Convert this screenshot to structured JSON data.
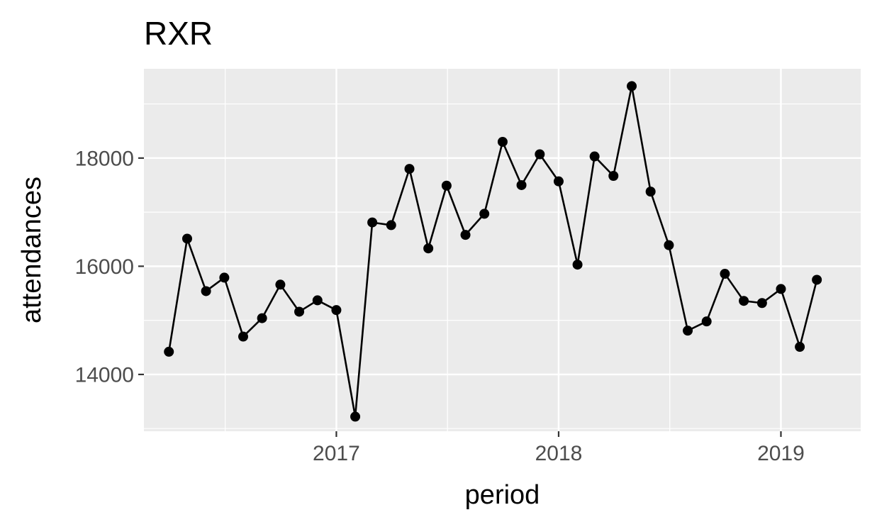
{
  "chart_data": {
    "type": "line",
    "title": "RXR",
    "xlabel": "period",
    "ylabel": "attendances",
    "x_axis": {
      "type": "date",
      "range": [
        "2016-02-20",
        "2019-05-12"
      ],
      "ticks": [
        "2017-01-01",
        "2018-01-01",
        "2019-01-01"
      ],
      "tick_labels": [
        "2017",
        "2018",
        "2019"
      ]
    },
    "y_axis": {
      "range": [
        12950,
        19650
      ],
      "ticks": [
        14000,
        16000,
        18000
      ],
      "tick_labels": [
        "14000",
        "16000",
        "18000"
      ]
    },
    "grid": true,
    "legend": "none",
    "colors": {
      "panel": "#EBEBEB",
      "grid": "#FFFFFF",
      "line": "#000000",
      "point": "#000000"
    },
    "series": [
      {
        "x": [
          "2016-04-01",
          "2016-05-01",
          "2016-06-01",
          "2016-07-01",
          "2016-08-01",
          "2016-09-01",
          "2016-10-01",
          "2016-11-01",
          "2016-12-01",
          "2017-01-01",
          "2017-02-01",
          "2017-03-01",
          "2017-04-01",
          "2017-05-01",
          "2017-06-01",
          "2017-07-01",
          "2017-08-01",
          "2017-09-01",
          "2017-10-01",
          "2017-11-01",
          "2017-12-01",
          "2018-01-01",
          "2018-02-01",
          "2018-03-01",
          "2018-04-01",
          "2018-05-01",
          "2018-06-01",
          "2018-07-01",
          "2018-08-01",
          "2018-09-01",
          "2018-10-01",
          "2018-11-01",
          "2018-12-01",
          "2019-01-01",
          "2019-02-01",
          "2019-03-01"
        ],
        "y": [
          14420,
          16510,
          15540,
          15790,
          14700,
          15040,
          15660,
          15160,
          15370,
          15190,
          13220,
          16810,
          16760,
          17800,
          16330,
          17490,
          16580,
          16970,
          18300,
          17500,
          18070,
          17570,
          16030,
          18030,
          17670,
          19330,
          17380,
          16390,
          14810,
          14980,
          15860,
          15360,
          15320,
          15580,
          14510,
          15750
        ]
      }
    ]
  }
}
